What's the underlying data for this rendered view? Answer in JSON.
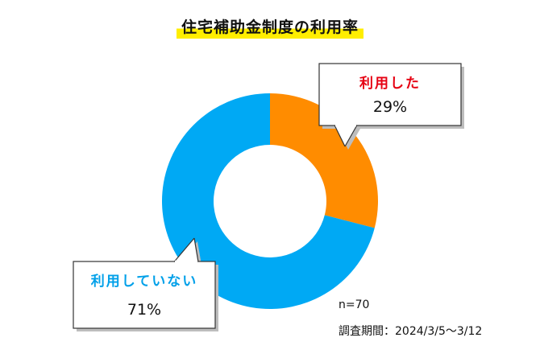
{
  "chart_data": {
    "type": "pie",
    "variant": "donut",
    "title": "住宅補助金制度の利用率",
    "slices": [
      {
        "label": "利用した",
        "value": 29,
        "value_label": "29%",
        "color": "#ff8c00",
        "label_color": "#e60012"
      },
      {
        "label": "利用していない",
        "value": 71,
        "value_label": "71%",
        "color": "#00a9f4",
        "label_color": "#00a0e9"
      }
    ],
    "highlight_color": "#ffee00",
    "sample_size": "n=70",
    "survey_period": "調査期間：2024/3/5～3/12"
  }
}
